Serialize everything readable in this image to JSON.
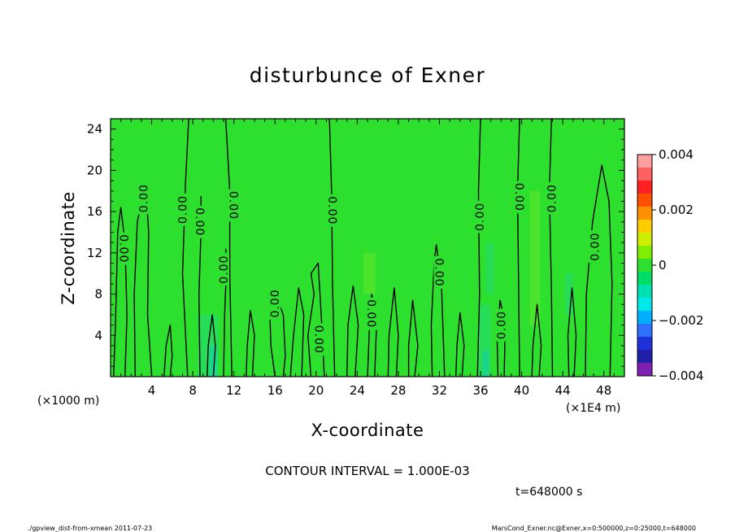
{
  "chart_data": {
    "type": "heatmap",
    "title": "disturbunce of Exner",
    "xlabel": "X-coordinate",
    "ylabel": "Z-coordinate",
    "x_unit_left": "(×1000 m)",
    "x_unit_right": "(×1E4 m)",
    "xlim": [
      0,
      50
    ],
    "ylim": [
      0,
      25
    ],
    "x_ticks": [
      "4",
      "8",
      "12",
      "16",
      "20",
      "24",
      "28",
      "32",
      "36",
      "40",
      "44",
      "48"
    ],
    "y_ticks": [
      "4",
      "8",
      "12",
      "16",
      "20",
      "24"
    ],
    "colorbar": {
      "min": -0.004,
      "max": 0.004,
      "tick_labels": [
        "0.004",
        "0.002",
        "0",
        "−0.002",
        "−0.004"
      ],
      "tick_values": [
        0.004,
        0.002,
        0,
        -0.002,
        -0.004
      ],
      "colors": [
        "#ffa0a0",
        "#ff6060",
        "#ff2020",
        "#ff5000",
        "#ff9000",
        "#ffcc00",
        "#ccee00",
        "#80ee00",
        "#2ee02e",
        "#00dd66",
        "#00e0b0",
        "#00e8e8",
        "#00b0ff",
        "#3070ff",
        "#2030dd",
        "#2020aa",
        "#8020b0"
      ]
    },
    "field_dominant_color": "#2ee02e",
    "contour_interval": "CONTOUR INTERVAL = 1.000E-03",
    "contour_labels": [
      {
        "text": "0.00",
        "x": 1.3,
        "z": 12.4,
        "rot": 90
      },
      {
        "text": "0.00",
        "x": 3.2,
        "z": 17.3,
        "rot": -90
      },
      {
        "text": "0.00",
        "x": 7.0,
        "z": 16.2,
        "rot": -90
      },
      {
        "text": "0.00",
        "x": 8.7,
        "z": 15.0,
        "rot": 90
      },
      {
        "text": "0.00",
        "x": 12.0,
        "z": 16.6,
        "rot": 90
      },
      {
        "text": "0.00",
        "x": 11.0,
        "z": 10.4,
        "rot": -90
      },
      {
        "text": "0.00",
        "x": 16.0,
        "z": 7.1,
        "rot": -90
      },
      {
        "text": "0.00",
        "x": 20.3,
        "z": 3.6,
        "rot": 90
      },
      {
        "text": "0.00",
        "x": 21.6,
        "z": 16.1,
        "rot": 90
      },
      {
        "text": "0.00",
        "x": 25.4,
        "z": 6.1,
        "rot": 90
      },
      {
        "text": "0.00",
        "x": 32.0,
        "z": 10.1,
        "rot": 90
      },
      {
        "text": "0.00",
        "x": 35.9,
        "z": 15.5,
        "rot": -90
      },
      {
        "text": "0.00",
        "x": 38.0,
        "z": 5.0,
        "rot": -90
      },
      {
        "text": "0.00",
        "x": 39.8,
        "z": 17.4,
        "rot": 90
      },
      {
        "text": "0.00",
        "x": 42.9,
        "z": 17.3,
        "rot": -90
      },
      {
        "text": "0.00",
        "x": 47.1,
        "z": 12.6,
        "rot": -90
      }
    ],
    "contours": [
      [
        [
          0.3,
          0
        ],
        [
          0.5,
          6
        ],
        [
          0.7,
          14
        ],
        [
          1.0,
          16.4
        ],
        [
          1.4,
          13
        ],
        [
          1.6,
          6
        ],
        [
          1.4,
          0
        ]
      ],
      [
        [
          2.4,
          0
        ],
        [
          2.3,
          8
        ],
        [
          2.6,
          15
        ],
        [
          3.4,
          18.8
        ],
        [
          3.7,
          14
        ],
        [
          3.6,
          6
        ],
        [
          4.0,
          0
        ]
      ],
      [
        [
          7.5,
          0
        ],
        [
          7.0,
          10
        ],
        [
          7.3,
          19
        ],
        [
          7.6,
          25
        ]
      ],
      [
        [
          8.7,
          0
        ],
        [
          8.6,
          8
        ],
        [
          8.8,
          14
        ],
        [
          8.8,
          17.5
        ]
      ],
      [
        [
          11.0,
          0
        ],
        [
          11.1,
          6
        ],
        [
          11.3,
          11
        ],
        [
          11.2,
          12.4
        ]
      ],
      [
        [
          11.8,
          0
        ],
        [
          11.6,
          10
        ],
        [
          11.6,
          18
        ],
        [
          11.2,
          25
        ]
      ],
      [
        [
          16.0,
          0
        ],
        [
          15.6,
          3
        ],
        [
          15.5,
          6
        ],
        [
          15.8,
          8.6
        ],
        [
          16.8,
          6
        ],
        [
          17.0,
          2
        ],
        [
          16.8,
          0
        ]
      ],
      [
        [
          19.5,
          0
        ],
        [
          19.2,
          4
        ],
        [
          19.8,
          8
        ],
        [
          19.5,
          10
        ],
        [
          20.2,
          11
        ],
        [
          20.5,
          6
        ],
        [
          20.8,
          0
        ]
      ],
      [
        [
          21.8,
          0
        ],
        [
          21.6,
          9
        ],
        [
          21.5,
          18
        ],
        [
          21.3,
          25
        ]
      ],
      [
        [
          25.0,
          0
        ],
        [
          25.2,
          5
        ],
        [
          25.4,
          8
        ],
        [
          25.9,
          5.6
        ],
        [
          25.7,
          0
        ]
      ],
      [
        [
          31.3,
          0
        ],
        [
          31.2,
          5
        ],
        [
          31.5,
          11.2
        ],
        [
          31.7,
          12.8
        ],
        [
          32.2,
          9
        ],
        [
          32.5,
          0
        ]
      ],
      [
        [
          35.7,
          0
        ],
        [
          35.9,
          8
        ],
        [
          35.8,
          18
        ],
        [
          36.0,
          25
        ]
      ],
      [
        [
          37.7,
          0
        ],
        [
          37.6,
          4
        ],
        [
          37.9,
          7.4
        ],
        [
          38.4,
          5
        ],
        [
          38.3,
          0
        ]
      ],
      [
        [
          39.8,
          0
        ],
        [
          39.7,
          9
        ],
        [
          39.6,
          18
        ],
        [
          39.8,
          25
        ]
      ],
      [
        [
          43.0,
          0
        ],
        [
          42.9,
          8
        ],
        [
          42.7,
          18
        ],
        [
          42.9,
          25
        ]
      ],
      [
        [
          46.2,
          0
        ],
        [
          46.3,
          8
        ],
        [
          46.9,
          15
        ],
        [
          47.8,
          20.5
        ],
        [
          48.5,
          17
        ],
        [
          48.8,
          9
        ],
        [
          48.6,
          0
        ]
      ],
      [
        [
          5.2,
          0
        ],
        [
          5.4,
          3
        ],
        [
          5.8,
          5
        ],
        [
          6.0,
          2
        ],
        [
          5.8,
          0
        ]
      ],
      [
        [
          9.4,
          0
        ],
        [
          9.5,
          3
        ],
        [
          9.9,
          6
        ],
        [
          10.2,
          3
        ],
        [
          10.0,
          0
        ]
      ],
      [
        [
          13.2,
          0
        ],
        [
          13.3,
          3
        ],
        [
          13.6,
          6.4
        ],
        [
          14.0,
          4
        ],
        [
          13.8,
          0
        ]
      ],
      [
        [
          17.5,
          0
        ],
        [
          17.8,
          4
        ],
        [
          18.3,
          8.6
        ],
        [
          18.8,
          6
        ],
        [
          18.6,
          0
        ]
      ],
      [
        [
          23.0,
          0
        ],
        [
          23.1,
          5
        ],
        [
          23.6,
          8.8
        ],
        [
          24.1,
          5
        ],
        [
          23.8,
          0
        ]
      ],
      [
        [
          27.0,
          0
        ],
        [
          27.1,
          4
        ],
        [
          27.6,
          8.6
        ],
        [
          28.0,
          4
        ],
        [
          27.8,
          0
        ]
      ],
      [
        [
          29.0,
          0
        ],
        [
          29.0,
          3
        ],
        [
          29.4,
          7.4
        ],
        [
          29.9,
          3
        ],
        [
          29.6,
          0
        ]
      ],
      [
        [
          33.6,
          0
        ],
        [
          33.7,
          3
        ],
        [
          34.0,
          6.2
        ],
        [
          34.4,
          3
        ],
        [
          34.2,
          0
        ]
      ],
      [
        [
          41.0,
          0
        ],
        [
          41.1,
          3
        ],
        [
          41.5,
          7.0
        ],
        [
          41.9,
          3
        ],
        [
          41.7,
          0
        ]
      ],
      [
        [
          44.6,
          0
        ],
        [
          44.5,
          4
        ],
        [
          44.9,
          8.6
        ],
        [
          45.3,
          4
        ],
        [
          45.1,
          0
        ]
      ]
    ]
  },
  "time_label": "t=648000 s",
  "footer_left": "./gpview_dist-from-xmean  2011-07-23",
  "footer_right": "MarsCond_Exner.nc@Exner,x=0:500000,z=0:25000,t=648000"
}
